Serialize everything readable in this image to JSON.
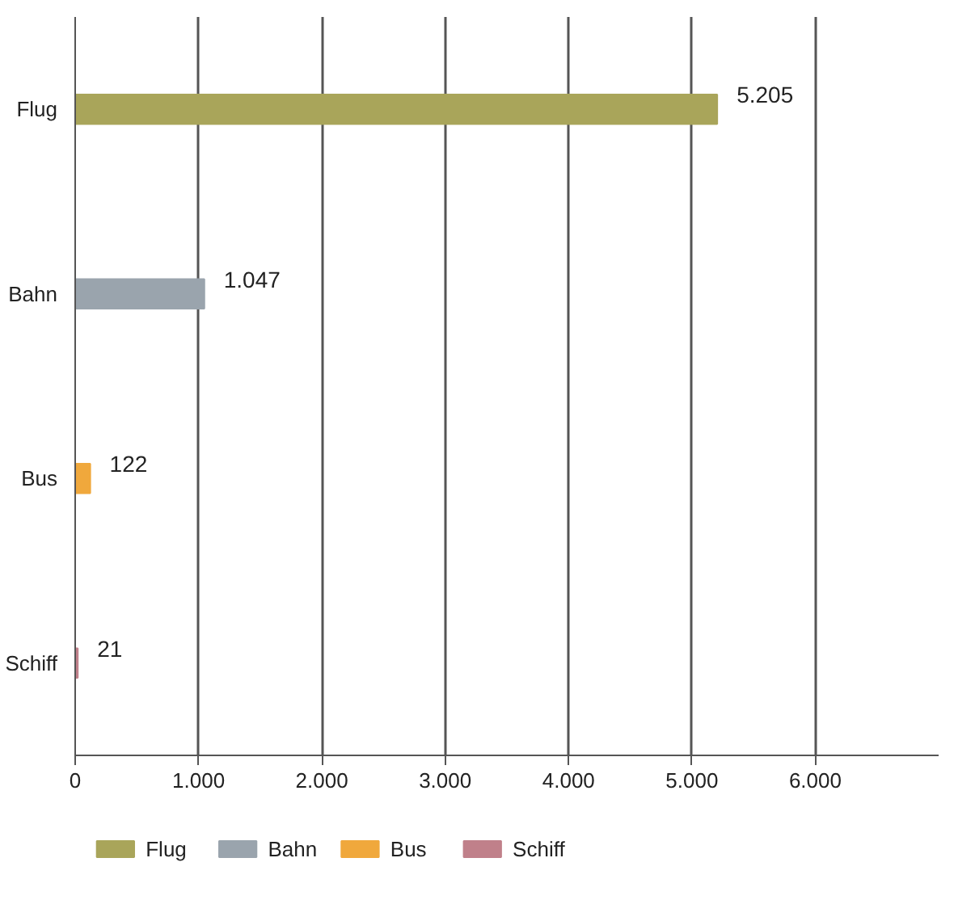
{
  "chart_data": {
    "type": "bar",
    "orientation": "horizontal",
    "categories": [
      "Flug",
      "Bahn",
      "Bus",
      "Schiff"
    ],
    "series": [
      {
        "name": "Flug",
        "color": "#a9a55a",
        "values": [
          5205,
          null,
          null,
          null
        ]
      },
      {
        "name": "Bahn",
        "color": "#9aa4ad",
        "values": [
          null,
          1047,
          null,
          null
        ]
      },
      {
        "name": "Bus",
        "color": "#f0a83c",
        "values": [
          null,
          null,
          122,
          null
        ]
      },
      {
        "name": "Schiff",
        "color": "#c0808a",
        "values": [
          null,
          null,
          null,
          21
        ]
      }
    ],
    "value_labels": [
      "5.205",
      "1.047",
      "122",
      "21"
    ],
    "xlim": [
      0,
      7000
    ],
    "xticks": [
      0,
      {
        "value": 1000,
        "label": "1.000"
      },
      {
        "value": 2000,
        "label": "2.000"
      },
      {
        "value": 3000,
        "label": "3.000"
      },
      {
        "value": 4000,
        "label": "4.000"
      },
      {
        "value": 5000,
        "label": "5.000"
      },
      {
        "value": 6000,
        "label": "6.000"
      }
    ],
    "grid": "x",
    "legend": "bottom"
  }
}
